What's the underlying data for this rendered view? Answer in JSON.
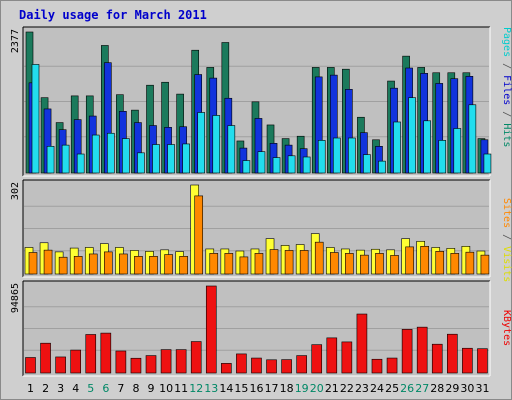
{
  "title": "Daily usage for March 2011",
  "chart_data": [
    {
      "type": "bar",
      "panel": "hits-files-pages",
      "ymax_label": "2377",
      "ylim": [
        0,
        2377
      ],
      "categories": [
        "1",
        "2",
        "3",
        "4",
        "5",
        "6",
        "7",
        "8",
        "9",
        "10",
        "11",
        "12",
        "13",
        "14",
        "15",
        "16",
        "17",
        "18",
        "19",
        "20",
        "21",
        "22",
        "23",
        "24",
        "25",
        "26",
        "27",
        "28",
        "29",
        "30",
        "31"
      ],
      "series": [
        {
          "name": "Hits",
          "color": "#1b7a5c",
          "values": [
            2377,
            1270,
            850,
            1300,
            1300,
            2150,
            1320,
            1060,
            1480,
            1530,
            1330,
            2070,
            1780,
            2200,
            540,
            1200,
            810,
            580,
            620,
            1780,
            1780,
            1750,
            940,
            560,
            1550,
            1970,
            1780,
            1690,
            1690,
            1690,
            580
          ]
        },
        {
          "name": "Files",
          "color": "#1133dd",
          "values": [
            1520,
            1080,
            730,
            900,
            960,
            1860,
            1040,
            850,
            800,
            770,
            780,
            1660,
            1600,
            1260,
            420,
            920,
            500,
            470,
            410,
            1620,
            1650,
            1410,
            680,
            450,
            1430,
            1770,
            1680,
            1510,
            1590,
            1630,
            560
          ]
        },
        {
          "name": "Pages",
          "color": "#22ddee",
          "values": [
            1830,
            450,
            470,
            320,
            640,
            670,
            580,
            340,
            480,
            480,
            490,
            1020,
            970,
            800,
            210,
            360,
            260,
            290,
            270,
            550,
            590,
            590,
            310,
            200,
            860,
            1270,
            880,
            550,
            750,
            1150,
            320
          ]
        }
      ]
    },
    {
      "type": "bar",
      "panel": "visits-sites",
      "ymax_label": "302",
      "ylim": [
        0,
        302
      ],
      "categories": [
        "1",
        "2",
        "3",
        "4",
        "5",
        "6",
        "7",
        "8",
        "9",
        "10",
        "11",
        "12",
        "13",
        "14",
        "15",
        "16",
        "17",
        "18",
        "19",
        "20",
        "21",
        "22",
        "23",
        "24",
        "25",
        "26",
        "27",
        "28",
        "29",
        "30",
        "31"
      ],
      "series": [
        {
          "name": "Visits",
          "color": "#ffff33",
          "values": [
            90,
            106,
            75,
            88,
            90,
            103,
            90,
            80,
            77,
            82,
            76,
            302,
            85,
            85,
            78,
            85,
            120,
            97,
            100,
            137,
            90,
            85,
            81,
            84,
            82,
            120,
            111,
            90,
            87,
            94,
            78
          ]
        },
        {
          "name": "Sites",
          "color": "#ff8800",
          "values": [
            73,
            81,
            57,
            60,
            68,
            75,
            68,
            60,
            60,
            66,
            60,
            265,
            70,
            70,
            58,
            70,
            83,
            80,
            80,
            108,
            73,
            70,
            64,
            70,
            63,
            92,
            94,
            77,
            70,
            74,
            64
          ]
        }
      ]
    },
    {
      "type": "bar",
      "panel": "kbytes",
      "ymax_label": "94865",
      "ylim": [
        0,
        94865
      ],
      "categories": [
        "1",
        "2",
        "3",
        "4",
        "5",
        "6",
        "7",
        "8",
        "9",
        "10",
        "11",
        "12",
        "13",
        "14",
        "15",
        "16",
        "17",
        "18",
        "19",
        "20",
        "21",
        "22",
        "23",
        "24",
        "25",
        "26",
        "27",
        "28",
        "29",
        "30",
        "31"
      ],
      "series": [
        {
          "name": "KBytes",
          "color": "#ee1111",
          "values": [
            16900,
            32500,
            17500,
            25000,
            42000,
            43500,
            24000,
            16100,
            19000,
            25500,
            25500,
            34300,
            94865,
            10500,
            20800,
            16300,
            14400,
            14600,
            19000,
            30900,
            38300,
            33900,
            64300,
            15000,
            16300,
            47600,
            50000,
            31400,
            42300,
            27000,
            26500
          ]
        }
      ]
    }
  ],
  "legends": {
    "top": [
      {
        "text": "Pages",
        "color": "#00cccc"
      },
      {
        "text": " / ",
        "color": "#555555"
      },
      {
        "text": "Files",
        "color": "#0000cc"
      },
      {
        "text": " / ",
        "color": "#555555"
      },
      {
        "text": "Hits",
        "color": "#008866"
      }
    ],
    "middle": [
      {
        "text": "Sites",
        "color": "#ff8800"
      },
      {
        "text": " / ",
        "color": "#555555"
      },
      {
        "text": "Visits",
        "color": "#dddd00"
      }
    ],
    "bottom": [
      {
        "text": "KBytes",
        "color": "#ee0000"
      }
    ]
  },
  "weekend_days": [
    "5",
    "6",
    "12",
    "13",
    "19",
    "20",
    "26",
    "27"
  ],
  "colors": {
    "weekday_label": "#000000",
    "weekend_label": "#008866",
    "panel_bg": "#c0c0c0",
    "page_bg": "#cfcfcf"
  }
}
